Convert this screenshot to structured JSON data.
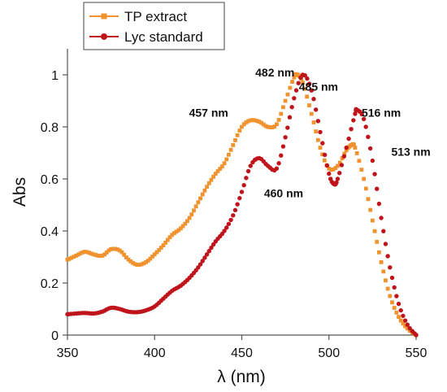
{
  "chart_data": {
    "type": "scatter",
    "title": "",
    "xlabel": "λ (nm)",
    "ylabel": "Abs",
    "xlim": [
      350,
      550
    ],
    "ylim": [
      0,
      1.1
    ],
    "xticks": [
      350,
      400,
      450,
      500,
      550
    ],
    "yticks": [
      0,
      0.2,
      0.4,
      0.6,
      0.8,
      1
    ],
    "xtick_labels": [
      "350",
      "400",
      "450",
      "500",
      "550"
    ],
    "ytick_labels": [
      "0",
      "0.2",
      "0.4",
      "0.6",
      "0.8",
      "1"
    ],
    "legend_position": "top-left",
    "grid": false,
    "series": [
      {
        "name": "TP extract",
        "color": "#F0922E",
        "marker": "square",
        "points": [
          [
            350,
            0.29
          ],
          [
            355,
            0.305
          ],
          [
            360,
            0.32
          ],
          [
            365,
            0.31
          ],
          [
            370,
            0.305
          ],
          [
            375,
            0.33
          ],
          [
            380,
            0.325
          ],
          [
            385,
            0.29
          ],
          [
            390,
            0.27
          ],
          [
            395,
            0.28
          ],
          [
            400,
            0.31
          ],
          [
            405,
            0.345
          ],
          [
            410,
            0.385
          ],
          [
            415,
            0.41
          ],
          [
            420,
            0.45
          ],
          [
            425,
            0.51
          ],
          [
            430,
            0.57
          ],
          [
            435,
            0.62
          ],
          [
            440,
            0.66
          ],
          [
            445,
            0.73
          ],
          [
            450,
            0.8
          ],
          [
            455,
            0.825
          ],
          [
            460,
            0.82
          ],
          [
            465,
            0.8
          ],
          [
            470,
            0.81
          ],
          [
            475,
            0.9
          ],
          [
            480,
            0.99
          ],
          [
            482,
            1.0
          ],
          [
            485,
            0.97
          ],
          [
            490,
            0.85
          ],
          [
            495,
            0.72
          ],
          [
            500,
            0.64
          ],
          [
            505,
            0.65
          ],
          [
            510,
            0.71
          ],
          [
            513,
            0.73
          ],
          [
            515,
            0.72
          ],
          [
            520,
            0.6
          ],
          [
            525,
            0.44
          ],
          [
            530,
            0.28
          ],
          [
            535,
            0.15
          ],
          [
            540,
            0.07
          ],
          [
            545,
            0.025
          ],
          [
            550,
            0.0
          ]
        ]
      },
      {
        "name": "Lyc standard",
        "color": "#C0141C",
        "marker": "circle",
        "points": [
          [
            350,
            0.08
          ],
          [
            355,
            0.083
          ],
          [
            360,
            0.085
          ],
          [
            365,
            0.083
          ],
          [
            370,
            0.09
          ],
          [
            375,
            0.105
          ],
          [
            380,
            0.1
          ],
          [
            385,
            0.09
          ],
          [
            390,
            0.088
          ],
          [
            395,
            0.095
          ],
          [
            400,
            0.11
          ],
          [
            405,
            0.14
          ],
          [
            410,
            0.17
          ],
          [
            415,
            0.19
          ],
          [
            420,
            0.22
          ],
          [
            425,
            0.26
          ],
          [
            430,
            0.31
          ],
          [
            435,
            0.36
          ],
          [
            440,
            0.4
          ],
          [
            445,
            0.46
          ],
          [
            450,
            0.55
          ],
          [
            455,
            0.65
          ],
          [
            460,
            0.68
          ],
          [
            465,
            0.65
          ],
          [
            470,
            0.64
          ],
          [
            475,
            0.76
          ],
          [
            480,
            0.91
          ],
          [
            485,
            1.0
          ],
          [
            490,
            0.94
          ],
          [
            495,
            0.78
          ],
          [
            500,
            0.62
          ],
          [
            503,
            0.58
          ],
          [
            505,
            0.6
          ],
          [
            510,
            0.72
          ],
          [
            515,
            0.85
          ],
          [
            516,
            0.865
          ],
          [
            520,
            0.83
          ],
          [
            525,
            0.67
          ],
          [
            530,
            0.45
          ],
          [
            535,
            0.26
          ],
          [
            540,
            0.12
          ],
          [
            545,
            0.04
          ],
          [
            550,
            0.0
          ]
        ]
      }
    ],
    "annotations": [
      {
        "text": "482 nm",
        "x": 469,
        "y": 1.01
      },
      {
        "text": "485 nm",
        "x": 494,
        "y": 0.955
      },
      {
        "text": "457 nm",
        "x": 431,
        "y": 0.855
      },
      {
        "text": "516 nm",
        "x": 530,
        "y": 0.855
      },
      {
        "text": "513 nm",
        "x": 547,
        "y": 0.705
      },
      {
        "text": "460 nm",
        "x": 474,
        "y": 0.545
      }
    ]
  }
}
